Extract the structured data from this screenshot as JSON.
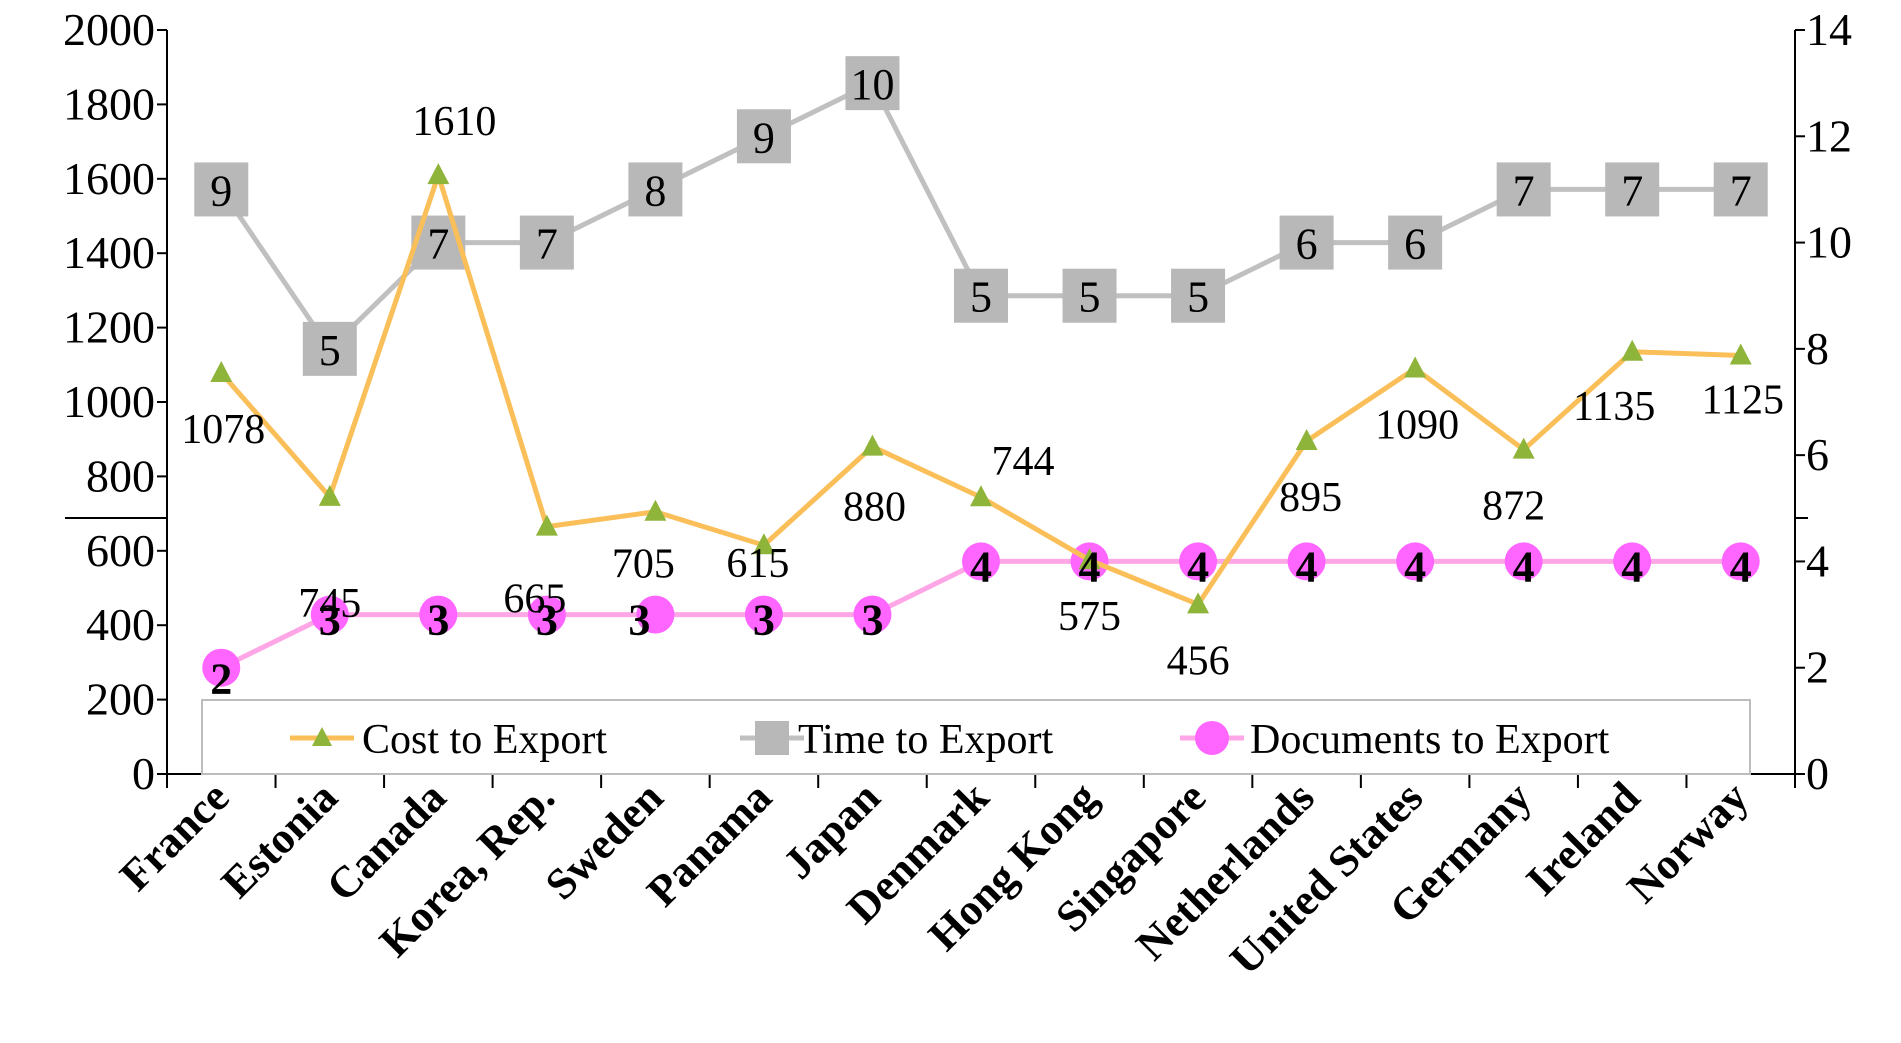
{
  "chart_data": {
    "type": "line",
    "categories": [
      "France",
      "Estonia",
      "Canada",
      "Korea, Rep.",
      "Sweden",
      "Panama",
      "Japan",
      "Denmark",
      "Hong Kong",
      "Singapore",
      "Netherlands",
      "United States",
      "Germany",
      "Ireland",
      "Norway"
    ],
    "series": [
      {
        "name": "Cost to Export",
        "axis": "left",
        "color": "#fbbf5a",
        "marker": "triangle",
        "marker_color": "#8fb43a",
        "values": [
          1078,
          745,
          1610,
          665,
          705,
          615,
          880,
          744,
          575,
          456,
          895,
          1090,
          872,
          1135,
          1125
        ],
        "labels": [
          "1078",
          "745",
          "1610",
          "665",
          "705",
          "615",
          "880",
          "744",
          "575",
          "456",
          "895",
          "1090",
          "872",
          "1135",
          "1125"
        ]
      },
      {
        "name": "Time to Export",
        "axis": "right",
        "color": "#c0c0c0",
        "marker": "square",
        "marker_color": "#b8b8b8",
        "values": [
          11,
          8,
          10,
          10,
          11,
          12,
          13,
          9,
          9,
          9,
          10,
          10,
          11,
          11,
          11
        ],
        "labels": [
          "9",
          "5",
          "7",
          "7",
          "8",
          "9",
          "10",
          "5",
          "5",
          "5",
          "6",
          "6",
          "7",
          "7",
          "7"
        ]
      },
      {
        "name": "Documents to Export",
        "axis": "right",
        "color": "#ffa6e6",
        "marker": "circle",
        "marker_color": "#ff66ff",
        "values": [
          2,
          3,
          3,
          3,
          3,
          3,
          3,
          4,
          4,
          4,
          4,
          4,
          4,
          4,
          4
        ],
        "labels": [
          "2",
          "3",
          "3",
          "3",
          "3",
          "3",
          "3",
          "4",
          "4",
          "4",
          "4",
          "4",
          "4",
          "4",
          "4"
        ]
      }
    ],
    "y_left": {
      "min": 0,
      "max": 2000,
      "ticks": [
        "0",
        "200",
        "400",
        "600",
        "800",
        "1000",
        "1200",
        "1400",
        "1600",
        "1800",
        "2000"
      ]
    },
    "y_right": {
      "min": 0,
      "max": 14,
      "ticks": [
        "0",
        "2",
        "4",
        "6",
        "8",
        "10",
        "12",
        "14"
      ]
    },
    "grid": false,
    "legend": {
      "placement": "bottom-inside",
      "entries": [
        "Cost to Export",
        "Time to Export",
        "Documents to Export"
      ]
    }
  }
}
